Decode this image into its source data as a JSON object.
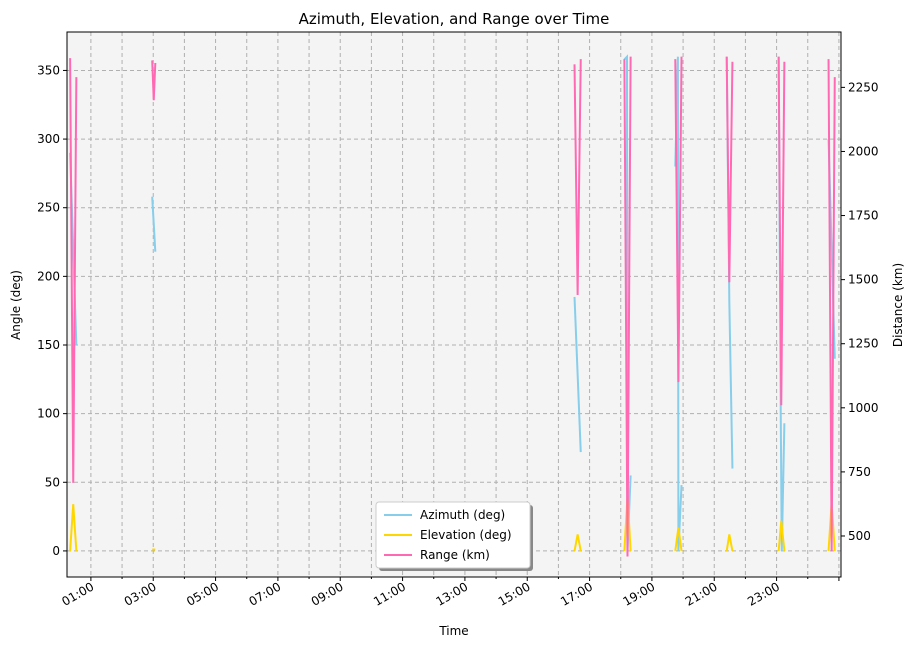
{
  "chart_data": {
    "type": "line",
    "title": "Azimuth, Elevation, and Range over Time",
    "xlabel": "Time",
    "ylabel": "Angle (deg)",
    "y2label": "Distance (km)",
    "xlim": [
      "00:14",
      "25:04"
    ],
    "ylim": [
      -19,
      378
    ],
    "y2lim": [
      340,
      2466
    ],
    "grid": true,
    "legend_position": "lower center",
    "x_ticks": [
      "01:00",
      "03:00",
      "05:00",
      "07:00",
      "09:00",
      "11:00",
      "13:00",
      "15:00",
      "17:00",
      "19:00",
      "21:00",
      "23:00"
    ],
    "y_ticks": [
      0,
      50,
      100,
      150,
      200,
      250,
      300,
      350
    ],
    "y2_ticks": [
      500,
      750,
      1000,
      1250,
      1500,
      1750,
      2000,
      2250
    ],
    "series": [
      {
        "name": "Azimuth (deg)",
        "axis": "left",
        "color": "#87CEEB",
        "points": [
          [
            "00:20",
            290
          ],
          [
            "00:26",
            220
          ],
          [
            "00:32",
            150
          ],
          null,
          [
            "02:58",
            258
          ],
          [
            "03:04",
            218
          ],
          null,
          [
            "16:31",
            185
          ],
          [
            "16:43",
            72
          ],
          null,
          [
            "18:07",
            358
          ],
          [
            "18:12",
            360
          ],
          [
            "18:13",
            0
          ],
          [
            "18:19",
            55
          ],
          null,
          [
            "19:45",
            280
          ],
          [
            "19:50",
            360
          ],
          [
            "19:51",
            0
          ],
          [
            "19:57",
            48
          ],
          null,
          [
            "21:24",
            360
          ],
          [
            "21:29",
            182
          ],
          [
            "21:35",
            60
          ],
          null,
          [
            "23:04",
            360
          ],
          [
            "23:08",
            100
          ],
          [
            "23:10",
            0
          ],
          [
            "23:15",
            93
          ],
          null,
          [
            "24:40",
            300
          ],
          [
            "24:52",
            140
          ]
        ]
      },
      {
        "name": "Elevation (deg)",
        "axis": "left",
        "color": "#FFD700",
        "points": [
          [
            "00:20",
            0
          ],
          [
            "00:26",
            34
          ],
          [
            "00:32",
            0
          ],
          null,
          [
            "02:58",
            1
          ],
          [
            "03:04",
            1
          ],
          null,
          [
            "16:31",
            0
          ],
          [
            "16:37",
            12
          ],
          [
            "16:43",
            0
          ],
          null,
          [
            "18:07",
            0
          ],
          [
            "18:13",
            40
          ],
          [
            "18:19",
            0
          ],
          null,
          [
            "19:45",
            0
          ],
          [
            "19:51",
            17
          ],
          [
            "19:57",
            0
          ],
          null,
          [
            "21:24",
            0
          ],
          [
            "21:29",
            12
          ],
          [
            "21:35",
            0
          ],
          null,
          [
            "23:04",
            0
          ],
          [
            "23:09",
            22
          ],
          [
            "23:15",
            0
          ],
          null,
          [
            "24:40",
            0
          ],
          [
            "24:46",
            35
          ],
          [
            "24:52",
            0
          ]
        ]
      },
      {
        "name": "Range (km)",
        "axis": "right",
        "color": "#FF69B4",
        "points": [
          [
            "00:20",
            2364
          ],
          [
            "00:26",
            707
          ],
          [
            "00:32",
            2290
          ],
          null,
          [
            "02:58",
            2355
          ],
          [
            "03:01",
            2200
          ],
          [
            "03:04",
            2345
          ],
          null,
          [
            "16:31",
            2340
          ],
          [
            "16:37",
            1440
          ],
          [
            "16:43",
            2360
          ],
          null,
          [
            "18:07",
            2360
          ],
          [
            "18:13",
            420
          ],
          [
            "18:19",
            2370
          ],
          null,
          [
            "19:45",
            2360
          ],
          [
            "19:51",
            1100
          ],
          [
            "19:57",
            2370
          ],
          null,
          [
            "21:24",
            2370
          ],
          [
            "21:29",
            1490
          ],
          [
            "21:35",
            2350
          ],
          null,
          [
            "23:04",
            2370
          ],
          [
            "23:09",
            1010
          ],
          [
            "23:15",
            2350
          ],
          null,
          [
            "24:40",
            2360
          ],
          [
            "24:46",
            440
          ],
          [
            "24:52",
            2290
          ]
        ]
      }
    ]
  }
}
